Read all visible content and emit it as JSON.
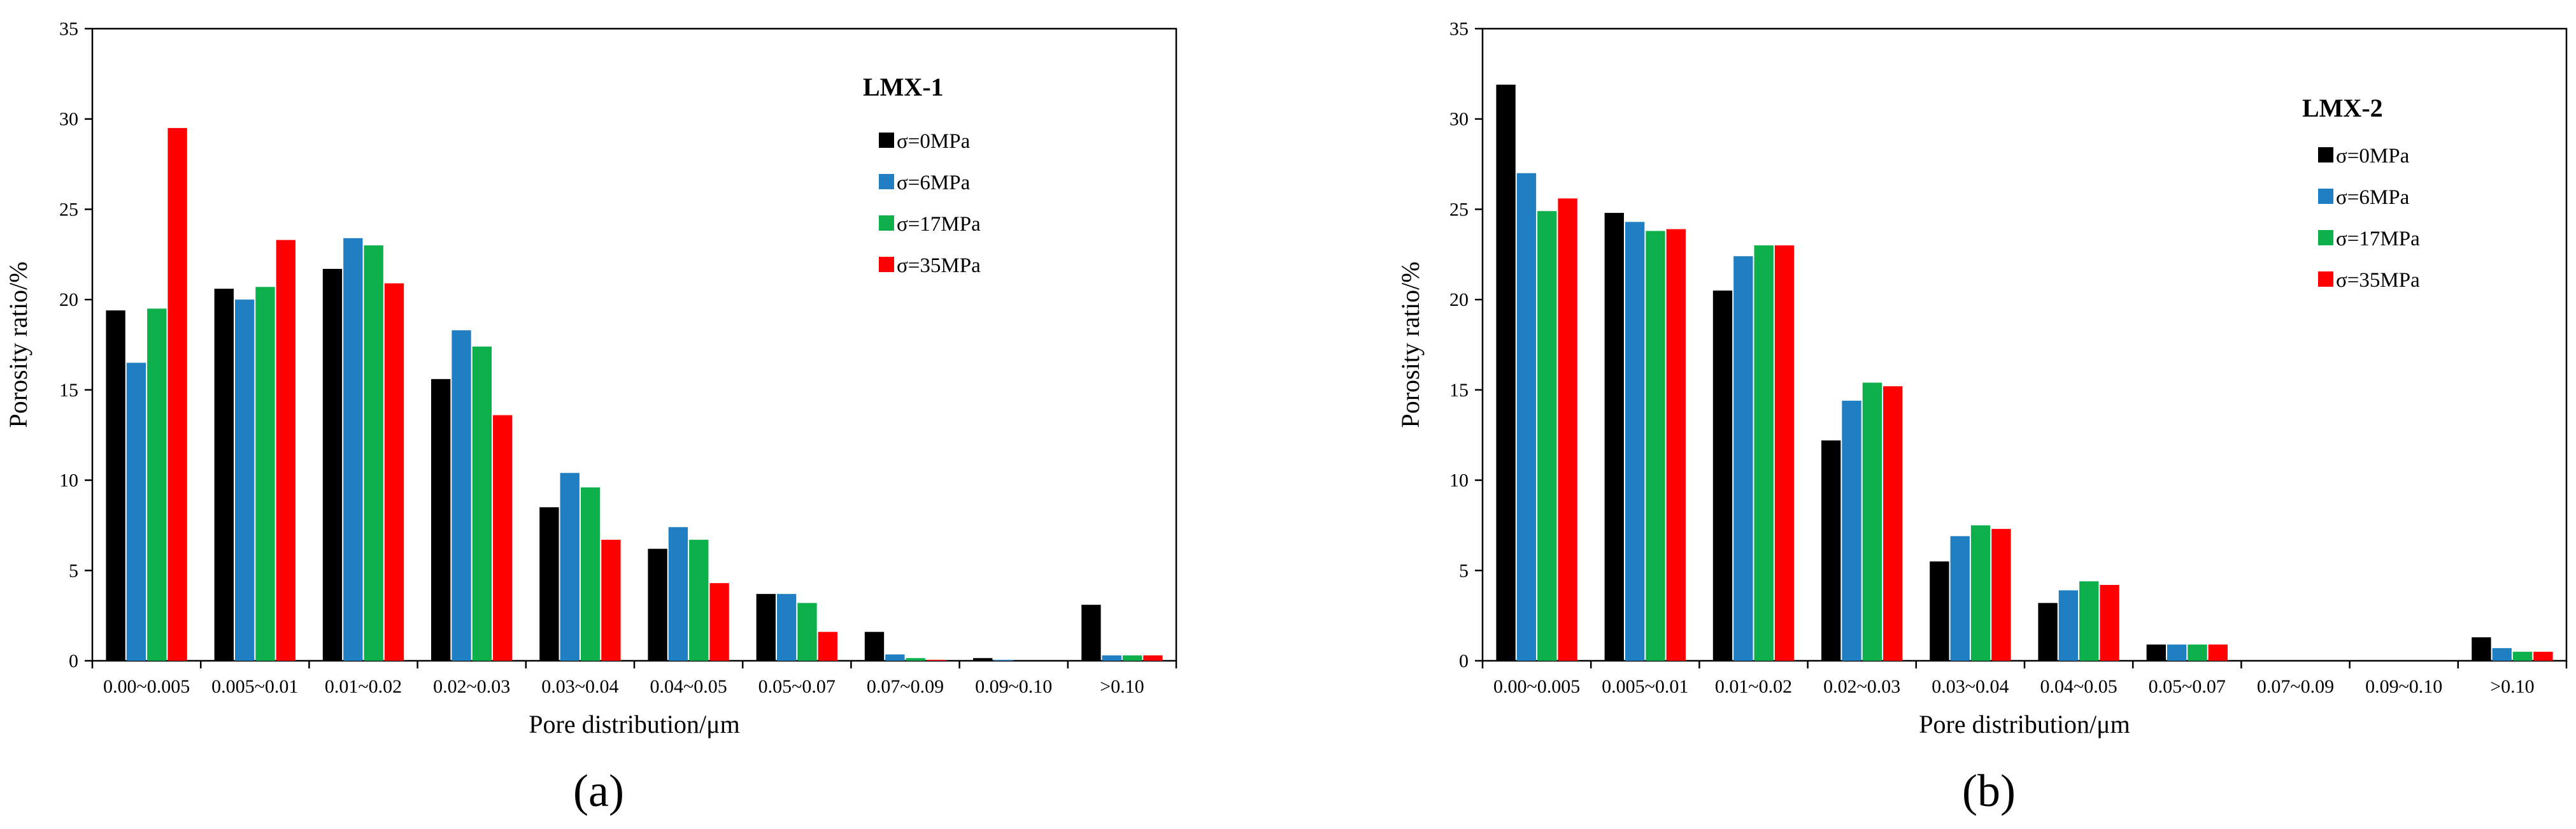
{
  "figure": {
    "panel_labels": [
      "(a)",
      "(b)"
    ]
  },
  "colors": {
    "s0": "#000000",
    "s6": "#1f7fc2",
    "s17": "#0db04b",
    "s35": "#ff0000"
  },
  "chart_data": [
    {
      "type": "bar",
      "panel_label": "(a)",
      "title": "LMX-1",
      "xlabel": "Pore distribution/μm",
      "ylabel": "Porosity ratio/%",
      "ylim": [
        0,
        35
      ],
      "yticks": [
        0,
        5,
        10,
        15,
        20,
        25,
        30,
        35
      ],
      "legend_position": "top-right",
      "categories": [
        "0.00~0.005",
        "0.005~0.01",
        "0.01~0.02",
        "0.02~0.03",
        "0.03~0.04",
        "0.04~0.05",
        "0.05~0.07",
        "0.07~0.09",
        "0.09~0.10",
        ">0.10"
      ],
      "series": [
        {
          "name": "σ=0MPa",
          "color": "#000000",
          "values": [
            19.4,
            20.6,
            21.7,
            15.6,
            8.5,
            6.2,
            3.7,
            1.6,
            0.15,
            3.1
          ]
        },
        {
          "name": "σ=6MPa",
          "color": "#1f7fc2",
          "values": [
            16.5,
            20.0,
            23.4,
            18.3,
            10.4,
            7.4,
            3.7,
            0.35,
            0.05,
            0.3
          ]
        },
        {
          "name": "σ=17MPa",
          "color": "#0db04b",
          "values": [
            19.5,
            20.7,
            23.0,
            17.4,
            9.6,
            6.7,
            3.2,
            0.15,
            0.0,
            0.3
          ]
        },
        {
          "name": "σ=35MPa",
          "color": "#ff0000",
          "values": [
            29.5,
            23.3,
            20.9,
            13.6,
            6.7,
            4.3,
            1.6,
            0.05,
            0.0,
            0.3
          ]
        }
      ]
    },
    {
      "type": "bar",
      "panel_label": "(b)",
      "title": "LMX-2",
      "xlabel": "Pore distribution/μm",
      "ylabel": "Porosity ratio/%",
      "ylim": [
        0,
        35
      ],
      "yticks": [
        0,
        5,
        10,
        15,
        20,
        25,
        30,
        35
      ],
      "legend_position": "top-right",
      "categories": [
        "0.00~0.005",
        "0.005~0.01",
        "0.01~0.02",
        "0.02~0.03",
        "0.03~0.04",
        "0.04~0.05",
        "0.05~0.07",
        "0.07~0.09",
        "0.09~0.10",
        ">0.10"
      ],
      "series": [
        {
          "name": "σ=0MPa",
          "color": "#000000",
          "values": [
            31.9,
            24.8,
            20.5,
            12.2,
            5.5,
            3.2,
            0.9,
            0.0,
            0.0,
            1.3
          ]
        },
        {
          "name": "σ=6MPa",
          "color": "#1f7fc2",
          "values": [
            27.0,
            24.3,
            22.4,
            14.4,
            6.9,
            3.9,
            0.9,
            0.0,
            0.0,
            0.7
          ]
        },
        {
          "name": "σ=17MPa",
          "color": "#0db04b",
          "values": [
            24.9,
            23.8,
            23.0,
            15.4,
            7.5,
            4.4,
            0.9,
            0.0,
            0.0,
            0.5
          ]
        },
        {
          "name": "σ=35MPa",
          "color": "#ff0000",
          "values": [
            25.6,
            23.9,
            23.0,
            15.2,
            7.3,
            4.2,
            0.9,
            0.0,
            0.0,
            0.5
          ]
        }
      ]
    }
  ]
}
